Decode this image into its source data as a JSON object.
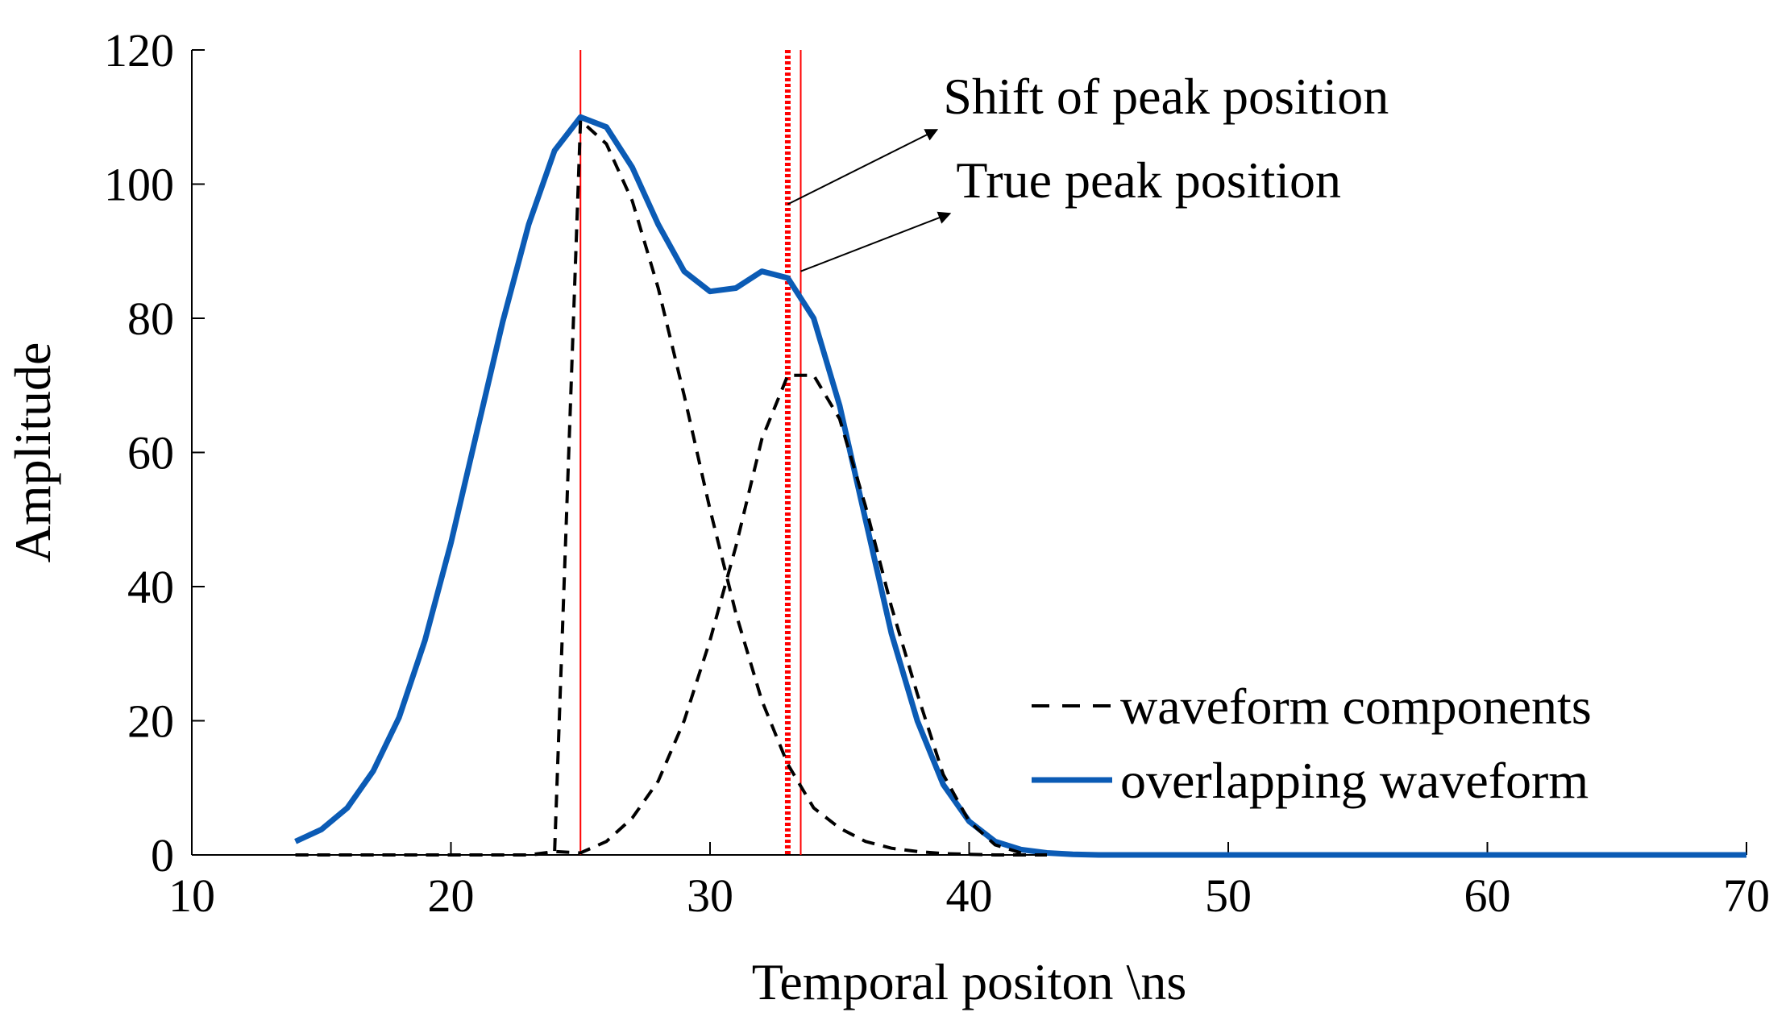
{
  "chart_data": {
    "type": "line",
    "title": "",
    "xlabel": "Temporal positon \\ns",
    "ylabel": "Amplitude",
    "xlim": [
      10,
      70
    ],
    "ylim": [
      0,
      120
    ],
    "xticks": [
      10,
      20,
      30,
      40,
      50,
      60,
      70
    ],
    "yticks": [
      0,
      20,
      40,
      60,
      80,
      100,
      120
    ],
    "grid": false,
    "legend_position": "bottom-right",
    "colors": {
      "overlapping": "#0B5BB5",
      "components": "#000000",
      "markers": "#FF0000"
    },
    "x": [
      14,
      15,
      16,
      17,
      18,
      19,
      20,
      21,
      22,
      23,
      24,
      25,
      26,
      27,
      28,
      29,
      30,
      31,
      32,
      33,
      34,
      35,
      36,
      37,
      38,
      39,
      40,
      41,
      42,
      43,
      44,
      45,
      46,
      47,
      48,
      49,
      50,
      51,
      52,
      53,
      54,
      55,
      56,
      57,
      58,
      59,
      60,
      61,
      62,
      63,
      64,
      65,
      66,
      67,
      68,
      69,
      70
    ],
    "series": [
      {
        "name": "overlapping waveform",
        "style": "solid",
        "values": [
          2,
          3.8,
          7,
          12.5,
          20.5,
          32,
          46.5,
          63,
          79.5,
          94,
          105,
          110,
          108.5,
          102.5,
          94,
          87,
          84,
          84.5,
          87,
          86,
          80,
          67,
          50,
          33,
          20,
          10.5,
          5,
          2,
          0.8,
          0.3,
          0.1,
          0,
          0,
          0,
          0,
          0,
          0,
          0,
          0,
          0,
          0,
          0,
          0,
          0,
          0,
          0,
          0,
          0,
          0,
          0,
          0,
          0,
          0,
          0,
          0,
          0,
          0
        ]
      },
      {
        "name": "waveform components",
        "style": "dashed",
        "segments": [
          {
            "x": [
              14,
              15,
              16,
              17,
              18,
              19,
              20,
              21,
              22,
              23,
              24,
              25,
              26,
              27,
              28,
              29,
              30,
              31,
              32,
              33,
              34,
              35,
              36,
              37,
              38,
              39,
              40,
              41,
              42,
              43
            ],
            "values": [
              0,
              0,
              0,
              0,
              0,
              0,
              0,
              0,
              0,
              0,
              0.3,
              109.5,
              106,
              97.5,
              84.5,
              68.5,
              51.5,
              36,
              23,
              13.5,
              7,
              4,
              2,
              1,
              0.5,
              0.2,
              0.1,
              0,
              0,
              0
            ]
          },
          {
            "x": [
              14,
              15,
              16,
              17,
              18,
              19,
              20,
              21,
              22,
              23,
              24,
              25,
              26,
              27,
              28,
              29,
              30,
              31,
              32,
              33,
              33.5,
              34,
              35,
              36,
              37,
              38,
              39,
              40,
              41,
              42
            ],
            "values": [
              0,
              0,
              0,
              0,
              0,
              0,
              0,
              0,
              0,
              0,
              0.5,
              0.3,
              2,
              5.5,
              11,
              20,
              32,
              46,
              62,
              71.5,
              71.5,
              71.5,
              65,
              52,
              37,
              24,
              12,
              5,
              1.5,
              0.3
            ]
          }
        ]
      }
    ],
    "vertical_lines": [
      {
        "name": "first-peak-line",
        "x": 25,
        "style": "solid"
      },
      {
        "name": "shift-of-peak-line",
        "x": 33,
        "style": "dotted"
      },
      {
        "name": "true-peak-line",
        "x": 33.5,
        "style": "solid"
      }
    ],
    "annotations": [
      {
        "name": "shift-of-peak",
        "text": "Shift of peak position",
        "point": [
          33,
          97
        ],
        "text_anchor": [
          39,
          110.5
        ]
      },
      {
        "name": "true-peak",
        "text": "True peak position",
        "point": [
          33.5,
          87
        ],
        "text_anchor": [
          39.5,
          98
        ]
      }
    ],
    "legend": [
      {
        "label": "waveform components",
        "style": "dashed"
      },
      {
        "label": "overlapping waveform",
        "style": "solid"
      }
    ]
  }
}
